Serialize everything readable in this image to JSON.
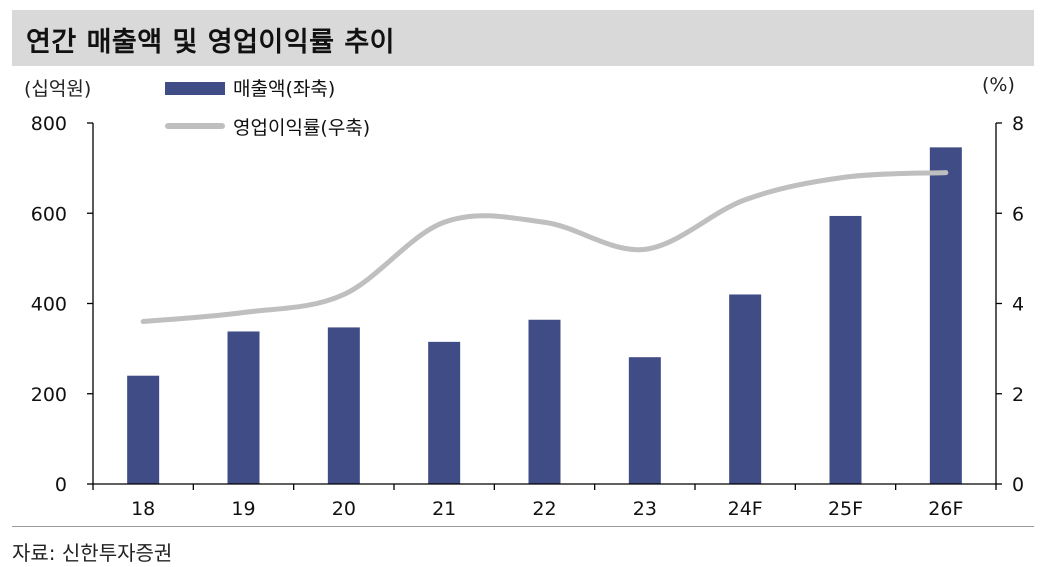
{
  "title": "연간 매출액 및 영업이익률 추이",
  "left_unit": "(십억원)",
  "right_unit": "(%)",
  "source": "자료: 신한투자증권",
  "colors": {
    "bar": "#404c86",
    "line": "#bfbfbf",
    "title_bg": "#d9d9d9"
  },
  "chart_data": {
    "type": "bar",
    "categories": [
      "18",
      "19",
      "20",
      "21",
      "22",
      "23",
      "24F",
      "25F",
      "26F"
    ],
    "series": [
      {
        "name": "매출액(좌축)",
        "type": "bar",
        "axis": "left",
        "values": [
          240,
          338,
          347,
          315,
          364,
          281,
          420,
          594,
          746
        ]
      },
      {
        "name": "영업이익률(우축)",
        "type": "line",
        "axis": "right",
        "values": [
          3.6,
          3.8,
          4.2,
          5.8,
          5.8,
          5.2,
          6.3,
          6.8,
          6.9
        ]
      }
    ],
    "y_left": {
      "lim": [
        0,
        800
      ],
      "ticks": [
        0,
        200,
        400,
        600,
        800
      ]
    },
    "y_right": {
      "lim": [
        0,
        8
      ],
      "ticks": [
        0,
        2,
        4,
        6,
        8
      ]
    },
    "grid": false,
    "legend": "top-center"
  }
}
